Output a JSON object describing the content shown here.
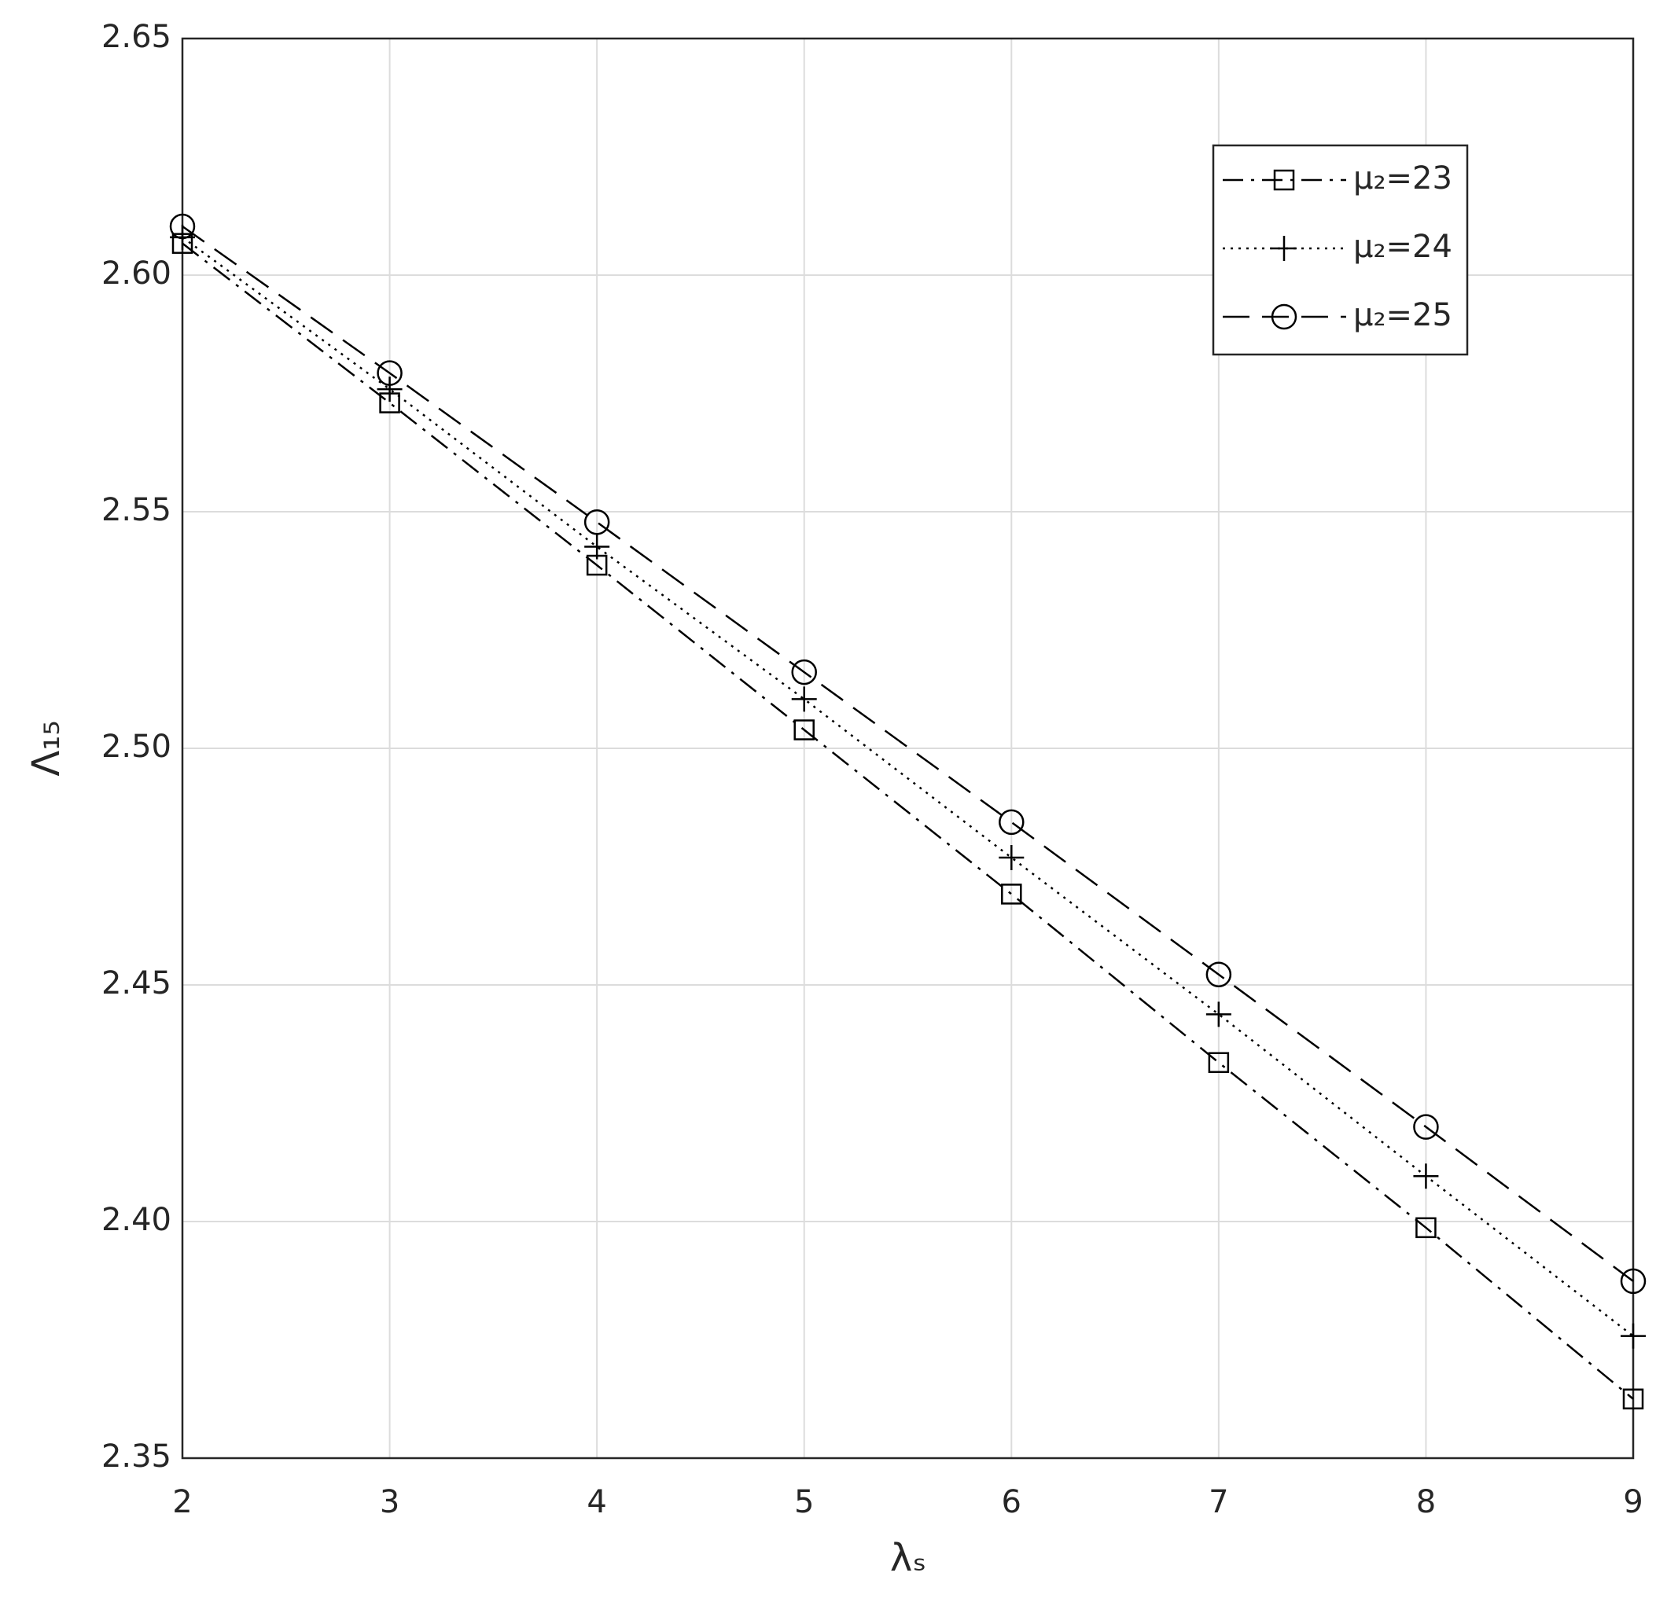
{
  "chart_data": {
    "type": "line",
    "xlabel": "λₛ",
    "ylabel": "Λ₁₅",
    "x": [
      2,
      3,
      4,
      5,
      6,
      7,
      8,
      9
    ],
    "series": [
      {
        "name": "μ₂=23",
        "color": "#000000",
        "linestyle": "dashdot",
        "marker": "square",
        "values": [
          2.6067,
          2.573,
          2.5387,
          2.5039,
          2.4692,
          2.4336,
          2.3987,
          2.3625
        ]
      },
      {
        "name": "μ₂=24",
        "color": "#000000",
        "linestyle": "dotted",
        "marker": "plus",
        "values": [
          2.608,
          2.5759,
          2.5426,
          2.5104,
          2.4769,
          2.4438,
          2.4096,
          2.3758
        ]
      },
      {
        "name": "μ₂=25",
        "color": "#000000",
        "linestyle": "dashed",
        "marker": "circle",
        "values": [
          2.6103,
          2.5793,
          2.5478,
          2.5161,
          2.4844,
          2.4522,
          2.42,
          2.3874
        ]
      }
    ],
    "xlim": [
      2,
      9
    ],
    "xticks": [
      2,
      3,
      4,
      5,
      6,
      7,
      8,
      9
    ],
    "ylim": [
      2.35,
      2.65
    ],
    "yticks": [
      2.35,
      {
        "value": 2.4,
        "label": "2.40"
      },
      2.45,
      {
        "value": 2.5,
        "label": "2.50"
      },
      2.55,
      {
        "value": 2.6,
        "label": "2.60"
      },
      2.65
    ],
    "grid": true,
    "legend": "upper right"
  }
}
